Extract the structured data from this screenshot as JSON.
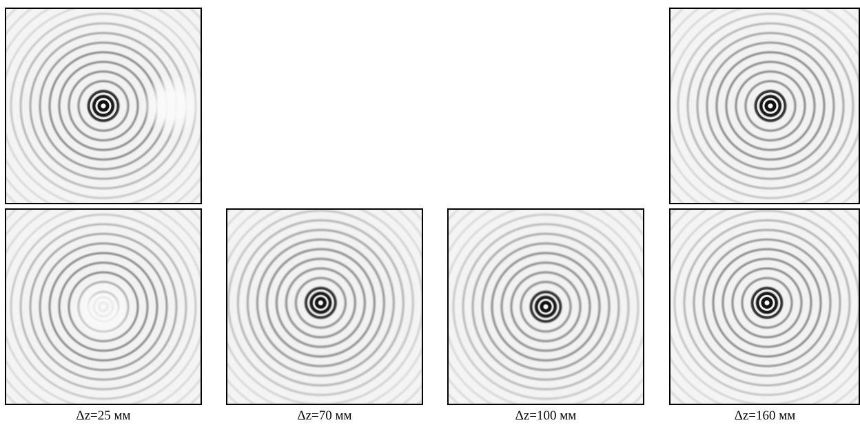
{
  "captions": [
    "Δz=25 мм",
    "Δz=70 мм",
    "Δz=100 мм",
    "Δz=160 мм"
  ]
}
